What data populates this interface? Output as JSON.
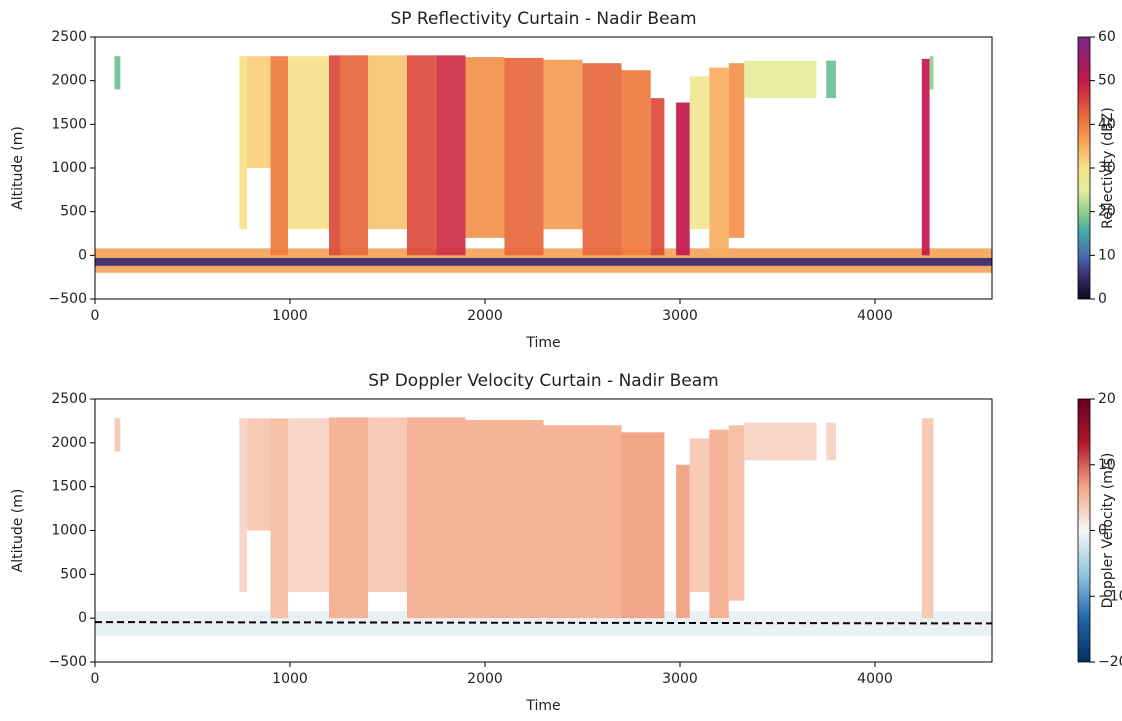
{
  "chart_data": [
    {
      "type": "curtain",
      "title": "SP Reflectivity Curtain - Nadir Beam",
      "xlabel": "Time",
      "ylabel": "Altitude (m)",
      "xlim": [
        0,
        4600
      ],
      "xticks": [
        0,
        1000,
        2000,
        3000,
        4000
      ],
      "ylim": [
        -500,
        2500
      ],
      "yticks": [
        {
          "value": -500,
          "label": "−500"
        },
        0,
        500,
        1000,
        1500,
        2000,
        2500
      ],
      "colorbar": {
        "label": "Reflectivity (dBZ)",
        "lim": [
          0,
          60
        ],
        "ticks": [
          0,
          10,
          20,
          30,
          40,
          50,
          60
        ],
        "colors": [
          "#0d0a1a",
          "#3a2a6e",
          "#4b6bb0",
          "#3fa6a8",
          "#8fcf8a",
          "#e6ee9a",
          "#f7e08a",
          "#f7b062",
          "#ef7b3e",
          "#dc4a3a",
          "#c2184a",
          "#9c1e6c",
          "#7a2a8a"
        ]
      },
      "x0": [
        0,
        0,
        100,
        740,
        780,
        900,
        990,
        1200,
        1260,
        1400,
        1600,
        1750,
        1900,
        2100,
        2300,
        2500,
        2700,
        2850,
        2980,
        3050,
        3150,
        3250,
        3330,
        3750,
        4240,
        4280
      ],
      "x1": [
        4600,
        4600,
        130,
        780,
        900,
        990,
        1200,
        1260,
        1400,
        1600,
        1750,
        1900,
        2100,
        2300,
        2500,
        2700,
        2850,
        2920,
        3050,
        3150,
        3250,
        3330,
        3700,
        3800,
        4280,
        4300
      ],
      "y0": [
        -200,
        -120,
        1900,
        300,
        1000,
        0,
        300,
        0,
        0,
        300,
        0,
        0,
        200,
        0,
        300,
        0,
        0,
        0,
        0,
        300,
        0,
        200,
        1800,
        1800,
        0,
        1900
      ],
      "y1": [
        80,
        -30,
        2280,
        2280,
        2280,
        2280,
        2280,
        2290,
        2290,
        2290,
        2290,
        2290,
        2270,
        2260,
        2240,
        2200,
        2120,
        1800,
        1750,
        2050,
        2150,
        2200,
        2230,
        2230,
        2250,
        2280
      ],
      "values": [
        36,
        5,
        18,
        30,
        32,
        40,
        30,
        45,
        42,
        33,
        45,
        48,
        38,
        42,
        37,
        42,
        40,
        45,
        50,
        28,
        35,
        38,
        25,
        18,
        50,
        20
      ]
    },
    {
      "type": "curtain",
      "title": "SP Doppler Velocity Curtain - Nadir Beam",
      "xlabel": "Time",
      "ylabel": "Altitude (m)",
      "xlim": [
        0,
        4600
      ],
      "xticks": [
        0,
        1000,
        2000,
        3000,
        4000
      ],
      "ylim": [
        -500,
        2500
      ],
      "yticks": [
        {
          "value": -500,
          "label": "−500"
        },
        0,
        500,
        1000,
        1500,
        2000,
        2500
      ],
      "colorbar": {
        "label": "Doppler Velocity (m/s)",
        "lim": [
          -20,
          20
        ],
        "ticks": [
          {
            "value": -20,
            "label": "−20"
          },
          {
            "value": -10,
            "label": "−10"
          },
          0,
          10,
          20
        ],
        "colors": [
          "#053061",
          "#2166ac",
          "#92c5de",
          "#f7f7f7",
          "#f4a582",
          "#b2182b",
          "#67001f"
        ]
      },
      "x0": [
        0,
        100,
        740,
        780,
        900,
        990,
        1200,
        1400,
        1600,
        1900,
        2300,
        2700,
        2980,
        3050,
        3150,
        3250,
        3330,
        3750,
        4240
      ],
      "x1": [
        4600,
        130,
        780,
        900,
        990,
        1200,
        1400,
        1600,
        1900,
        2300,
        2700,
        2920,
        3050,
        3150,
        3250,
        3330,
        3700,
        3800,
        4300
      ],
      "y0": [
        -200,
        1900,
        300,
        1000,
        0,
        300,
        0,
        300,
        0,
        0,
        0,
        0,
        0,
        300,
        0,
        200,
        1800,
        1800,
        0
      ],
      "y1": [
        80,
        2280,
        2280,
        2280,
        2280,
        2280,
        2290,
        2290,
        2290,
        2260,
        2200,
        2120,
        1750,
        2050,
        2150,
        2200,
        2230,
        2230,
        2280
      ],
      "values": [
        -1,
        4,
        3,
        4,
        5,
        3,
        6,
        4,
        6,
        6,
        6,
        7,
        7,
        4,
        6,
        5,
        3,
        3,
        4
      ],
      "line": {
        "x": [
          0,
          4600
        ],
        "y": [
          -45,
          -60
        ],
        "color": "#000000",
        "dash": true
      }
    }
  ]
}
